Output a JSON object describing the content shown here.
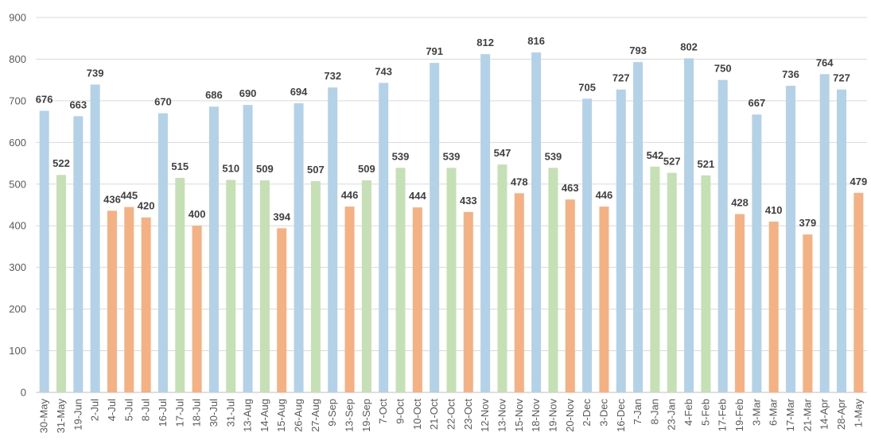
{
  "chart_data": {
    "type": "bar",
    "title": "",
    "xlabel": "",
    "ylabel": "",
    "ylim": [
      0,
      900
    ],
    "yticks": [
      0,
      100,
      200,
      300,
      400,
      500,
      600,
      700,
      800,
      900
    ],
    "grid": true,
    "legend": "none",
    "colors": {
      "blue": "#b4d2e7",
      "green": "#c5e0b4",
      "orange": "#f4b183"
    },
    "categories": [
      "30-May",
      "31-May",
      "19-Jun",
      "2-Jul",
      "4-Jul",
      "5-Jul",
      "8-Jul",
      "16-Jul",
      "17-Jul",
      "18-Jul",
      "30-Jul",
      "31-Jul",
      "13-Aug",
      "14-Aug",
      "15-Aug",
      "26-Aug",
      "27-Aug",
      "9-Sep",
      "13-Sep",
      "19-Sep",
      "7-Oct",
      "9-Oct",
      "10-Oct",
      "21-Oct",
      "22-Oct",
      "23-Oct",
      "12-Nov",
      "13-Nov",
      "15-Nov",
      "18-Nov",
      "19-Nov",
      "20-Nov",
      "2-Dec",
      "3-Dec",
      "16-Dec",
      "7-Jan",
      "8-Jan",
      "23-Jan",
      "4-Feb",
      "5-Feb",
      "17-Feb",
      "19-Feb",
      "3-Mar",
      "6-Mar",
      "17-Mar",
      "21-Mar",
      "14-Apr",
      "28-Apr",
      "1-May"
    ],
    "values": [
      676,
      522,
      663,
      739,
      436,
      445,
      420,
      670,
      515,
      400,
      686,
      510,
      690,
      509,
      394,
      694,
      507,
      732,
      446,
      509,
      743,
      539,
      444,
      791,
      539,
      433,
      812,
      547,
      478,
      816,
      539,
      463,
      705,
      446,
      727,
      793,
      542,
      527,
      802,
      521,
      750,
      428,
      667,
      410,
      736,
      379,
      764,
      727,
      479
    ],
    "bar_colors": [
      "blue",
      "green",
      "blue",
      "blue",
      "orange",
      "orange",
      "orange",
      "blue",
      "green",
      "orange",
      "blue",
      "green",
      "blue",
      "green",
      "orange",
      "blue",
      "green",
      "blue",
      "orange",
      "green",
      "blue",
      "green",
      "orange",
      "blue",
      "green",
      "orange",
      "blue",
      "green",
      "orange",
      "blue",
      "green",
      "orange",
      "blue",
      "orange",
      "blue",
      "blue",
      "green",
      "green",
      "blue",
      "green",
      "blue",
      "orange",
      "blue",
      "orange",
      "blue",
      "orange",
      "blue",
      "blue",
      "orange"
    ]
  }
}
